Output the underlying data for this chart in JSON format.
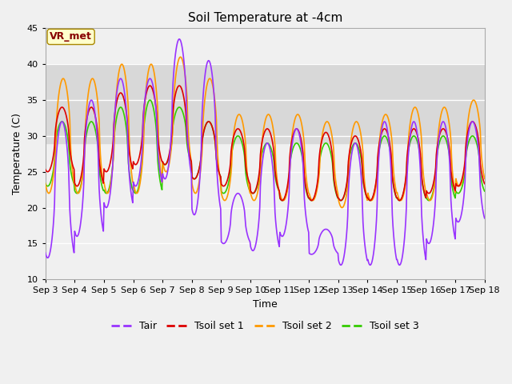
{
  "title": "Soil Temperature at -4cm",
  "xlabel": "Time",
  "ylabel": "Temperature (C)",
  "ylim": [
    10,
    45
  ],
  "yticks": [
    10,
    15,
    20,
    25,
    30,
    35,
    40,
    45
  ],
  "xtick_labels": [
    "Sep 3",
    "Sep 4",
    "Sep 5",
    "Sep 6",
    "Sep 7",
    "Sep 8",
    "Sep 9",
    "Sep 10",
    "Sep 11",
    "Sep 12",
    "Sep 13",
    "Sep 14",
    "Sep 15",
    "Sep 16",
    "Sep 17",
    "Sep 18"
  ],
  "colors": {
    "Tair": "#9933ff",
    "Tsoil set 1": "#dd0000",
    "Tsoil set 2": "#ff9900",
    "Tsoil set 3": "#33cc00"
  },
  "linewidths": {
    "Tair": 1.2,
    "Tsoil set 1": 1.2,
    "Tsoil set 2": 1.2,
    "Tsoil set 3": 1.2
  },
  "annotation_text": "VR_met",
  "annotation_color": "#880000",
  "annotation_bg": "#ffffcc",
  "band_low": 29,
  "band_high": 40,
  "band_color": "#d8d8d8",
  "bg_color": "#f0f0f0",
  "tair_peaks": [
    32,
    35,
    38,
    38,
    43.5,
    40.5,
    22,
    29,
    31,
    17,
    29,
    32,
    32,
    32,
    32
  ],
  "tair_mins": [
    13,
    16,
    20,
    23,
    24,
    19,
    15,
    14,
    16,
    13.5,
    12,
    12,
    12,
    15,
    18
  ],
  "tsoil1_peaks": [
    34,
    34,
    36,
    37,
    37,
    32,
    31,
    31,
    31,
    30.5,
    30,
    31,
    31,
    31,
    32
  ],
  "tsoil1_mins": [
    25,
    23,
    25,
    26,
    26,
    24,
    23,
    22,
    21,
    21,
    21,
    21,
    21,
    22,
    23
  ],
  "tsoil2_peaks": [
    38,
    38,
    40,
    40,
    41,
    38,
    33,
    33,
    33,
    32,
    32,
    33,
    34,
    34,
    35
  ],
  "tsoil2_mins": [
    22,
    22,
    22,
    22,
    25,
    22,
    21,
    21,
    21,
    21,
    20,
    21,
    21,
    21,
    23
  ],
  "tsoil3_peaks": [
    32,
    32,
    34,
    35,
    34,
    32,
    30,
    29,
    29,
    29,
    29,
    30,
    30,
    30,
    30
  ],
  "tsoil3_mins": [
    23,
    22,
    22,
    22,
    26,
    24,
    22,
    22,
    21,
    21,
    21,
    21,
    21,
    21,
    22
  ]
}
